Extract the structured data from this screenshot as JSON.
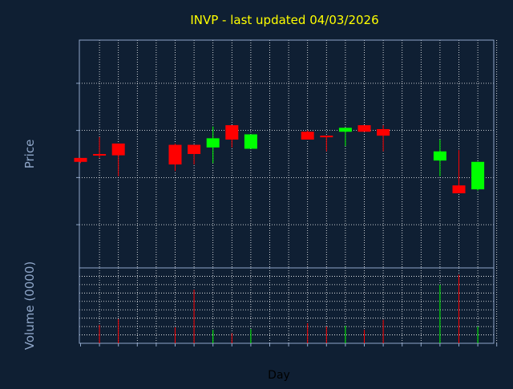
{
  "chart_data": {
    "type": "candlestick",
    "title": "INVP - last updated 04/03/2026",
    "xlabel": "Day",
    "price_ylabel": "Price",
    "volume_ylabel": "Volume (0000)",
    "price_ylim": [
      542,
      716
    ],
    "price_ticks": [
      575,
      611,
      647,
      683
    ],
    "volume_ylim": [
      0,
      450
    ],
    "volume_ticks": [
      0,
      50,
      100,
      150,
      200,
      250,
      300,
      350,
      400,
      450
    ],
    "x_ticks": [
      "11",
      "12",
      "13",
      "14",
      "15",
      "16",
      "17",
      "18",
      "19",
      "20",
      "21",
      "22",
      "23",
      "24",
      "25",
      "26",
      "27",
      "28",
      "01",
      "02",
      "03",
      "04",
      "05"
    ],
    "grid": true,
    "colors": {
      "background": "#0f1f33",
      "up": "#00ff00",
      "down": "#ff0000",
      "grid": "#ffffff",
      "axis_text": "#8fa6c8",
      "title": "#ffff00"
    },
    "candles": [
      {
        "x": "11",
        "open": 626,
        "close": 623,
        "high": 626,
        "low": 622,
        "volume": 0
      },
      {
        "x": "12",
        "open": 629,
        "close": 628,
        "high": 642,
        "low": 626,
        "volume": 110
      },
      {
        "x": "13",
        "open": 637,
        "close": 628,
        "high": 637,
        "low": 612,
        "volume": 145
      },
      {
        "x": "16",
        "open": 636,
        "close": 621,
        "high": 637,
        "low": 616,
        "volume": 95
      },
      {
        "x": "17",
        "open": 636,
        "close": 629,
        "high": 636,
        "low": 621,
        "volume": 320
      },
      {
        "x": "18",
        "open": 634,
        "close": 641,
        "high": 650,
        "low": 622,
        "volume": 80
      },
      {
        "x": "19",
        "open": 651,
        "close": 640,
        "high": 651,
        "low": 634,
        "volume": 60
      },
      {
        "x": "20",
        "open": 633,
        "close": 644,
        "high": 644,
        "low": 633,
        "volume": 85
      },
      {
        "x": "23",
        "open": 646,
        "close": 640,
        "high": 647,
        "low": 640,
        "volume": 120
      },
      {
        "x": "24",
        "open": 643,
        "close": 642,
        "high": 643,
        "low": 631,
        "volume": 100
      },
      {
        "x": "25",
        "open": 646,
        "close": 649,
        "high": 649,
        "low": 635,
        "volume": 105
      },
      {
        "x": "26",
        "open": 651,
        "close": 646,
        "high": 651,
        "low": 646,
        "volume": 80
      },
      {
        "x": "27",
        "open": 648,
        "close": 643,
        "high": 651,
        "low": 631,
        "volume": 140
      },
      {
        "x": "02",
        "open": 624,
        "close": 631,
        "high": 640,
        "low": 612,
        "volume": 350
      },
      {
        "x": "03",
        "open": 605,
        "close": 599,
        "high": 632,
        "low": 599,
        "volume": 410
      },
      {
        "x": "04",
        "open": 602,
        "close": 623,
        "high": 623,
        "low": 601,
        "volume": 100
      }
    ]
  }
}
